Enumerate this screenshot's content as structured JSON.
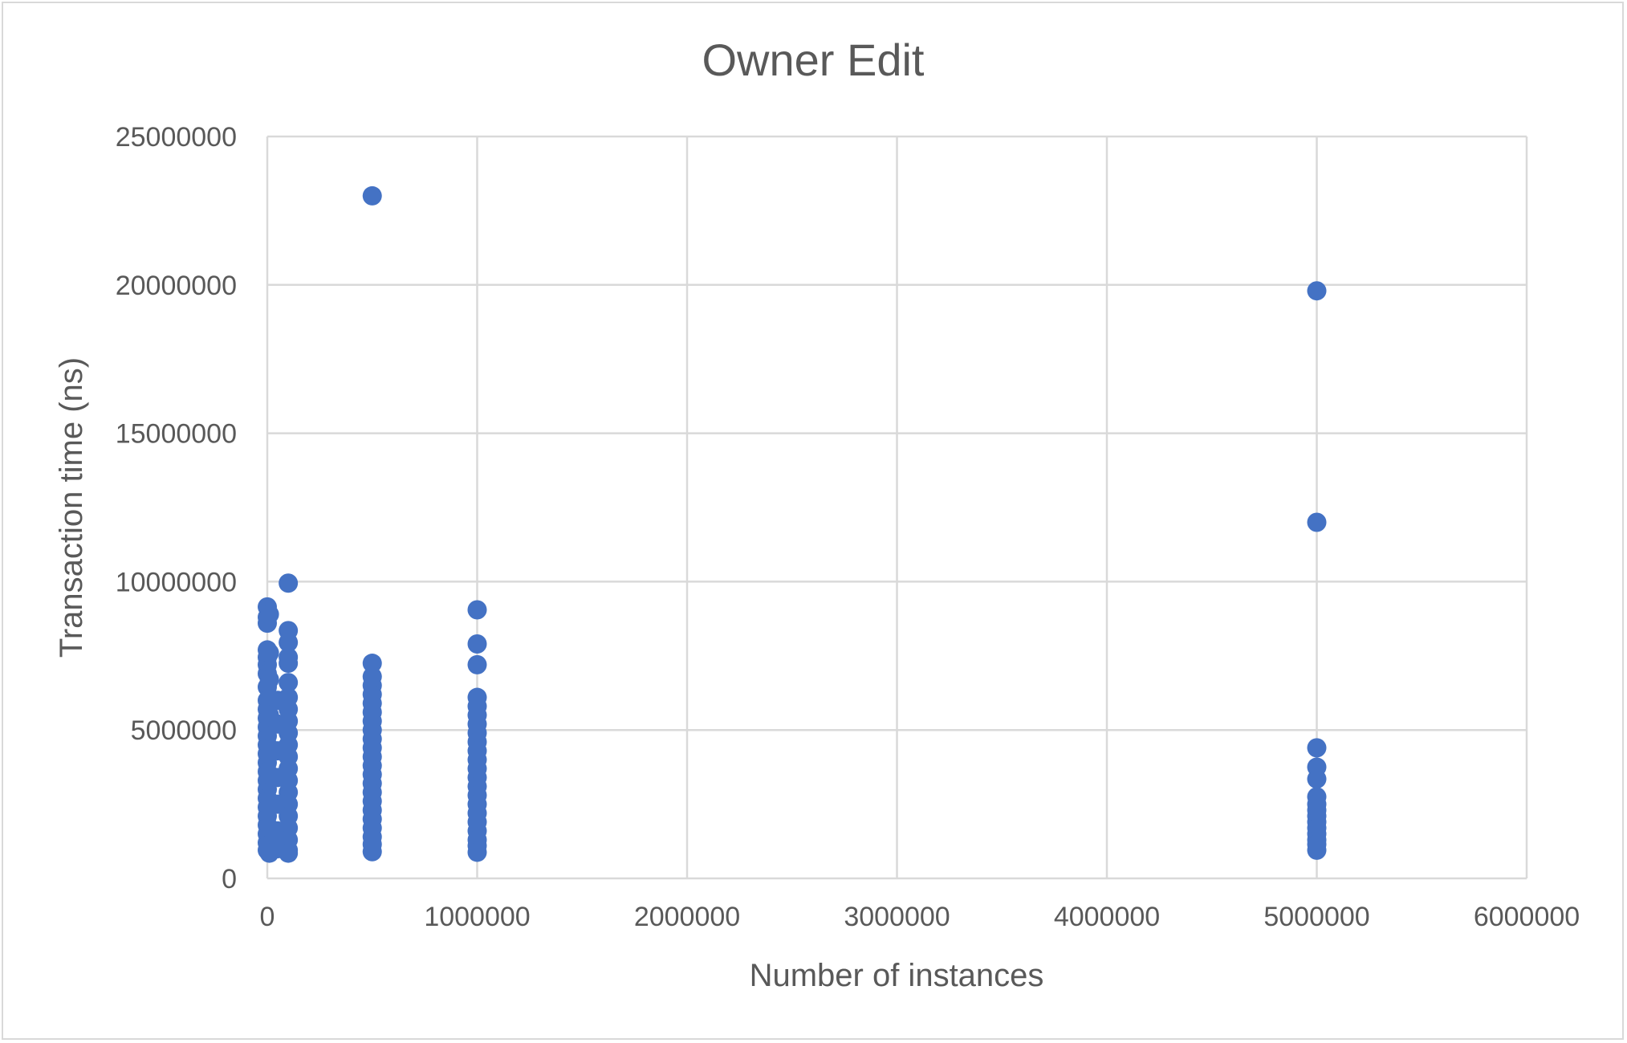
{
  "chart_data": {
    "type": "scatter",
    "title": "Owner Edit",
    "xlabel": "Number of instances",
    "ylabel": "Transaction time (ns)",
    "xlim": [
      0,
      6000000
    ],
    "ylim": [
      0,
      25000000
    ],
    "x_ticks": [
      "0",
      "1000000",
      "2000000",
      "3000000",
      "4000000",
      "5000000",
      "6000000"
    ],
    "y_ticks": [
      "0",
      "5000000",
      "10000000",
      "15000000",
      "20000000",
      "25000000"
    ],
    "grid": true,
    "legend": "none",
    "series": [
      {
        "color": "#4472c4",
        "points": [
          [
            0,
            9150000
          ],
          [
            0,
            8800000
          ],
          [
            0,
            8600000
          ],
          [
            0,
            7700000
          ],
          [
            0,
            7450000
          ],
          [
            0,
            7200000
          ],
          [
            0,
            6900000
          ],
          [
            0,
            6450000
          ],
          [
            0,
            6000000
          ],
          [
            0,
            5700000
          ],
          [
            0,
            5400000
          ],
          [
            0,
            5100000
          ],
          [
            0,
            4800000
          ],
          [
            0,
            4500000
          ],
          [
            0,
            4200000
          ],
          [
            0,
            3900000
          ],
          [
            0,
            3600000
          ],
          [
            0,
            3300000
          ],
          [
            0,
            3000000
          ],
          [
            0,
            2700000
          ],
          [
            0,
            2400000
          ],
          [
            0,
            2100000
          ],
          [
            0,
            1800000
          ],
          [
            0,
            1500000
          ],
          [
            0,
            1200000
          ],
          [
            0,
            950000
          ],
          [
            10000,
            8900000
          ],
          [
            10000,
            7600000
          ],
          [
            10000,
            6700000
          ],
          [
            10000,
            5500000
          ],
          [
            10000,
            4400000
          ],
          [
            10000,
            3500000
          ],
          [
            10000,
            2600000
          ],
          [
            10000,
            1700000
          ],
          [
            10000,
            850000
          ],
          [
            50000,
            6000000
          ],
          [
            50000,
            5200000
          ],
          [
            50000,
            4300000
          ],
          [
            50000,
            3400000
          ],
          [
            50000,
            2500000
          ],
          [
            50000,
            1600000
          ],
          [
            50000,
            1000000
          ],
          [
            100000,
            9950000
          ],
          [
            100000,
            8350000
          ],
          [
            100000,
            7950000
          ],
          [
            100000,
            7450000
          ],
          [
            100000,
            7250000
          ],
          [
            100000,
            6600000
          ],
          [
            100000,
            6100000
          ],
          [
            100000,
            5700000
          ],
          [
            100000,
            5300000
          ],
          [
            100000,
            4900000
          ],
          [
            100000,
            4500000
          ],
          [
            100000,
            4100000
          ],
          [
            100000,
            3700000
          ],
          [
            100000,
            3300000
          ],
          [
            100000,
            2900000
          ],
          [
            100000,
            2500000
          ],
          [
            100000,
            2100000
          ],
          [
            100000,
            1700000
          ],
          [
            100000,
            1300000
          ],
          [
            100000,
            950000
          ],
          [
            100000,
            850000
          ],
          [
            500000,
            23000000
          ],
          [
            500000,
            7250000
          ],
          [
            500000,
            6800000
          ],
          [
            500000,
            6500000
          ],
          [
            500000,
            6200000
          ],
          [
            500000,
            5900000
          ],
          [
            500000,
            5600000
          ],
          [
            500000,
            5300000
          ],
          [
            500000,
            5000000
          ],
          [
            500000,
            4700000
          ],
          [
            500000,
            4400000
          ],
          [
            500000,
            4100000
          ],
          [
            500000,
            3800000
          ],
          [
            500000,
            3500000
          ],
          [
            500000,
            3200000
          ],
          [
            500000,
            2900000
          ],
          [
            500000,
            2600000
          ],
          [
            500000,
            2300000
          ],
          [
            500000,
            2000000
          ],
          [
            500000,
            1700000
          ],
          [
            500000,
            1400000
          ],
          [
            500000,
            1150000
          ],
          [
            500000,
            900000
          ],
          [
            1000000,
            9050000
          ],
          [
            1000000,
            7900000
          ],
          [
            1000000,
            7200000
          ],
          [
            1000000,
            6100000
          ],
          [
            1000000,
            5800000
          ],
          [
            1000000,
            5500000
          ],
          [
            1000000,
            5200000
          ],
          [
            1000000,
            4900000
          ],
          [
            1000000,
            4600000
          ],
          [
            1000000,
            4300000
          ],
          [
            1000000,
            4000000
          ],
          [
            1000000,
            3700000
          ],
          [
            1000000,
            3400000
          ],
          [
            1000000,
            3100000
          ],
          [
            1000000,
            2800000
          ],
          [
            1000000,
            2500000
          ],
          [
            1000000,
            2200000
          ],
          [
            1000000,
            1900000
          ],
          [
            1000000,
            1600000
          ],
          [
            1000000,
            1300000
          ],
          [
            1000000,
            1100000
          ],
          [
            1000000,
            880000
          ],
          [
            5000000,
            19800000
          ],
          [
            5000000,
            12000000
          ],
          [
            5000000,
            4400000
          ],
          [
            5000000,
            3750000
          ],
          [
            5000000,
            3350000
          ],
          [
            5000000,
            2750000
          ],
          [
            5000000,
            2500000
          ],
          [
            5000000,
            2300000
          ],
          [
            5000000,
            2100000
          ],
          [
            5000000,
            1900000
          ],
          [
            5000000,
            1700000
          ],
          [
            5000000,
            1500000
          ],
          [
            5000000,
            1300000
          ],
          [
            5000000,
            1150000
          ],
          [
            5000000,
            950000
          ]
        ]
      }
    ]
  }
}
